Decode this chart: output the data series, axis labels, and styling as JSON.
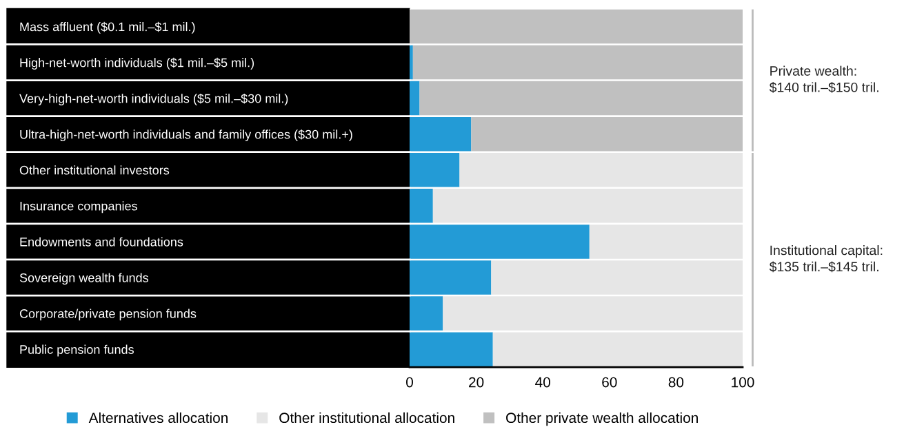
{
  "chart_data": {
    "type": "bar",
    "orientation": "horizontal",
    "stacked": true,
    "categories": [
      "Mass affluent ($0.1 mil.–$1 mil.)",
      "High-net-worth individuals ($1 mil.–$5 mil.)",
      "Very-high-net-worth individuals ($5 mil.–$30 mil.)",
      "Ultra-high-net-worth individuals and family offices ($30 mil.+)",
      "Other institutional investors",
      "Insurance companies",
      "Endowments and foundations",
      "Sovereign wealth funds",
      "Corporate/private pension funds",
      "Public pension funds"
    ],
    "series": [
      {
        "name": "Alternatives allocation",
        "color": "#239bd6",
        "values": [
          0,
          1,
          3,
          18.5,
          15,
          7,
          54,
          24.5,
          10,
          25
        ]
      },
      {
        "name": "Other institutional allocation",
        "color": "#e6e6e6",
        "values": [
          null,
          null,
          null,
          null,
          85,
          93,
          46,
          75.5,
          90,
          75
        ]
      },
      {
        "name": "Other private wealth allocation",
        "color": "#c0c0c0",
        "values": [
          100,
          99,
          97,
          81.5,
          null,
          null,
          null,
          null,
          null,
          null
        ]
      }
    ],
    "xlim": [
      0,
      100
    ],
    "xticks": [
      0,
      20,
      40,
      60,
      80,
      100
    ],
    "grid": false,
    "legend": "bottom",
    "annotations": [
      "Private wealth: $140 tril.–$150 tril.",
      "Institutional capital: $135 tril.–$145 tril."
    ]
  }
}
